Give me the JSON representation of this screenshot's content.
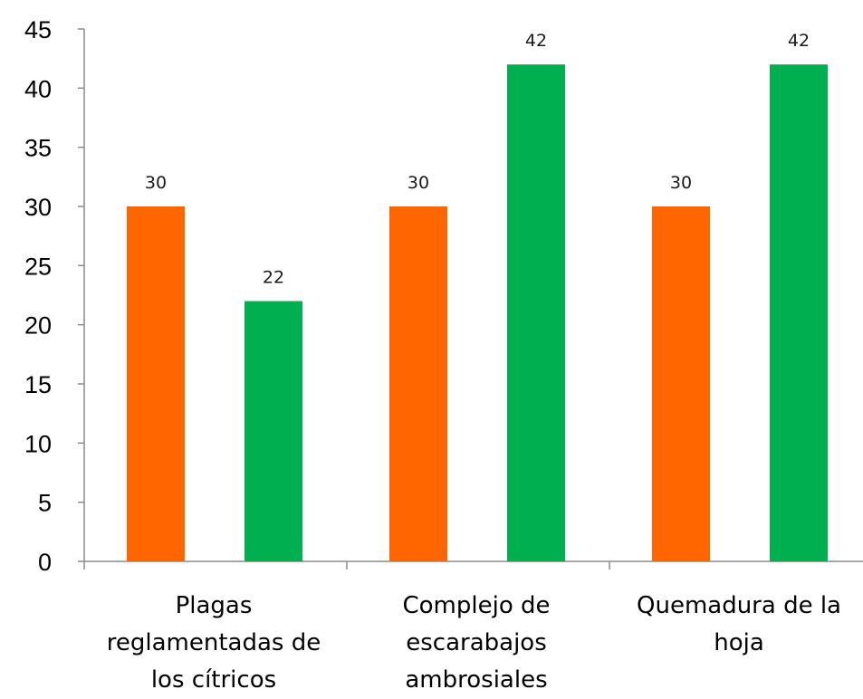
{
  "chart_data": {
    "type": "bar",
    "title": "",
    "xlabel": "",
    "ylabel": "",
    "categories": [
      [
        "Plagas",
        "reglamentadas de",
        "los cítricos"
      ],
      [
        "Complejo de",
        "escarabajos",
        "ambrosiales"
      ],
      [
        "Quemadura de la",
        "hoja"
      ]
    ],
    "series": [
      {
        "color": "#ff6600",
        "values": [
          30,
          30,
          30
        ]
      },
      {
        "color": "#00b050",
        "values": [
          22,
          42,
          42
        ]
      }
    ],
    "ylim": [
      0,
      45
    ],
    "yticks": [
      0,
      5,
      10,
      15,
      20,
      25,
      30,
      35,
      40,
      45
    ],
    "grid": false,
    "legend": "none",
    "data_labels": true
  }
}
